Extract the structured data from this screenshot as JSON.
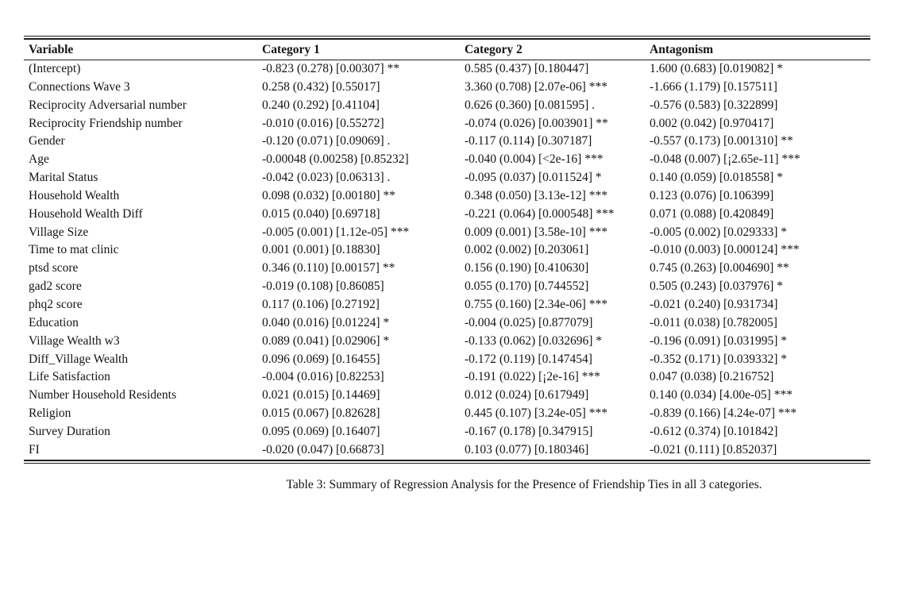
{
  "table": {
    "headers": [
      "Variable",
      "Category 1",
      "Category 2",
      "Antagonism"
    ],
    "column_keys": [
      "variable",
      "category1",
      "category2",
      "antagonism"
    ],
    "rows": [
      {
        "variable": "(Intercept)",
        "category1": "-0.823 (0.278) [0.00307] **",
        "category2": "0.585 (0.437) [0.180447]",
        "antagonism": "1.600 (0.683) [0.019082] *"
      },
      {
        "variable": "Connections Wave 3",
        "category1": "0.258 (0.432) [0.55017]",
        "category2": "3.360 (0.708) [2.07e-06] ***",
        "antagonism": "-1.666 (1.179) [0.157511]"
      },
      {
        "variable": "Reciprocity Adversarial number",
        "category1": "0.240 (0.292) [0.41104]",
        "category2": "0.626 (0.360) [0.081595] .",
        "antagonism": "-0.576 (0.583) [0.322899]"
      },
      {
        "variable": "Reciprocity Friendship number",
        "category1": "-0.010 (0.016) [0.55272]",
        "category2": "-0.074 (0.026) [0.003901] **",
        "antagonism": "0.002 (0.042) [0.970417]"
      },
      {
        "variable": "Gender",
        "category1": "-0.120 (0.071) [0.09069] .",
        "category2": "-0.117 (0.114) [0.307187]",
        "antagonism": "-0.557 (0.173) [0.001310] **"
      },
      {
        "variable": "Age",
        "category1": "-0.00048 (0.00258) [0.85232]",
        "category2": "-0.040 (0.004) [<2e-16] ***",
        "antagonism": "-0.048 (0.007) [¡2.65e-11] ***"
      },
      {
        "variable": "Marital Status",
        "category1": "-0.042 (0.023) [0.06313] .",
        "category2": "-0.095 (0.037) [0.011524] *",
        "antagonism": "0.140 (0.059) [0.018558] *"
      },
      {
        "variable": "Household Wealth",
        "category1": "0.098 (0.032) [0.00180] **",
        "category2": "0.348 (0.050) [3.13e-12] ***",
        "antagonism": "0.123 (0.076) [0.106399]"
      },
      {
        "variable": "Household Wealth Diff",
        "category1": "0.015 (0.040) [0.69718]",
        "category2": "-0.221 (0.064) [0.000548] ***",
        "antagonism": "0.071 (0.088) [0.420849]"
      },
      {
        "variable": "Village Size",
        "category1": "-0.005 (0.001) [1.12e-05] ***",
        "category2": "0.009 (0.001) [3.58e-10] ***",
        "antagonism": "-0.005 (0.002) [0.029333] *"
      },
      {
        "variable": "Time to mat clinic",
        "category1": "0.001 (0.001) [0.18830]",
        "category2": "0.002 (0.002) [0.203061]",
        "antagonism": "-0.010 (0.003) [0.000124] ***"
      },
      {
        "variable": "ptsd score",
        "category1": "0.346 (0.110) [0.00157] **",
        "category2": "0.156 (0.190) [0.410630]",
        "antagonism": "0.745 (0.263) [0.004690] **"
      },
      {
        "variable": "gad2 score",
        "category1": "-0.019 (0.108) [0.86085]",
        "category2": "0.055 (0.170) [0.744552]",
        "antagonism": "0.505 (0.243) [0.037976] *"
      },
      {
        "variable": "phq2 score",
        "category1": "0.117 (0.106) [0.27192]",
        "category2": "0.755 (0.160) [2.34e-06] ***",
        "antagonism": "-0.021 (0.240) [0.931734]"
      },
      {
        "variable": "Education",
        "category1": "0.040 (0.016) [0.01224] *",
        "category2": "-0.004 (0.025) [0.877079]",
        "antagonism": "-0.011 (0.038) [0.782005]"
      },
      {
        "variable": "Village Wealth w3",
        "category1": "0.089 (0.041) [0.02906] *",
        "category2": "-0.133 (0.062) [0.032696] *",
        "antagonism": "-0.196 (0.091) [0.031995] *"
      },
      {
        "variable": "Diff_Village Wealth",
        "category1": "0.096 (0.069) [0.16455]",
        "category2": "-0.172 (0.119) [0.147454]",
        "antagonism": "-0.352 (0.171) [0.039332] *"
      },
      {
        "variable": "Life Satisfaction",
        "category1": "-0.004 (0.016) [0.82253]",
        "category2": "-0.191 (0.022) [¡2e-16] ***",
        "antagonism": "0.047 (0.038) [0.216752]"
      },
      {
        "variable": "Number Household Residents",
        "category1": "0.021 (0.015) [0.14469]",
        "category2": "0.012 (0.024) [0.617949]",
        "antagonism": "0.140 (0.034) [4.00e-05] ***"
      },
      {
        "variable": "Religion",
        "category1": "0.015 (0.067) [0.82628]",
        "category2": "0.445 (0.107) [3.24e-05] ***",
        "antagonism": "-0.839 (0.166) [4.24e-07] ***"
      },
      {
        "variable": "Survey Duration",
        "category1": "0.095 (0.069) [0.16407]",
        "category2": "-0.167 (0.178) [0.347915]",
        "antagonism": "-0.612 (0.374) [0.101842]"
      },
      {
        "variable": "FI",
        "category1": "-0.020 (0.047) [0.66873]",
        "category2": "0.103 (0.077) [0.180346]",
        "antagonism": "-0.021 (0.111) [0.852037]"
      }
    ]
  },
  "caption": "Table 3: Summary of Regression Analysis for the Presence of Friendship Ties in all 3 categories."
}
